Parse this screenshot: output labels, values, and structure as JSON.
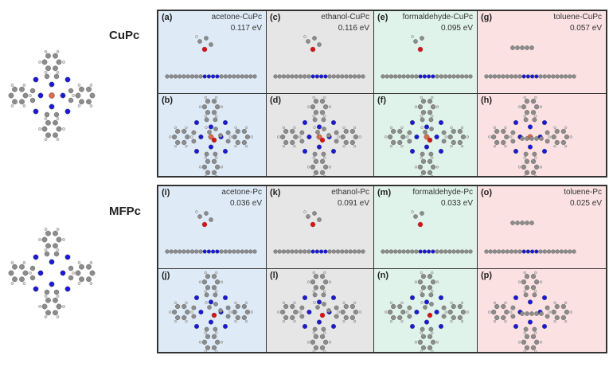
{
  "figure": {
    "molecules": [
      {
        "label": "CuPc",
        "center_atom": "Cu"
      },
      {
        "label": "MFPc",
        "center_atom": "H2"
      }
    ],
    "colors": {
      "acetone_bg": "#deebf7",
      "ethanol_bg": "#e6e6e6",
      "formaldehyde_bg": "#dff3ea",
      "toluene_bg": "#fbe1e1",
      "carbon": "#8c8c8c",
      "nitrogen": "#1a1ad6",
      "oxygen": "#e01010",
      "copper": "#d96a4a",
      "hydrogen": "#e0e0e0"
    },
    "rows": [
      {
        "substrate": "CuPc",
        "panels": [
          {
            "side_tag": "(a)",
            "top_tag": "(b)",
            "name": "acetone-CuPc",
            "energy": "0.117 eV"
          },
          {
            "side_tag": "(c)",
            "top_tag": "(d)",
            "name": "ethanol-CuPc",
            "energy": "0.116 eV"
          },
          {
            "side_tag": "(e)",
            "top_tag": "(f)",
            "name": "formaldehyde-CuPc",
            "energy": "0.095 eV"
          },
          {
            "side_tag": "(g)",
            "top_tag": "(h)",
            "name": "toluene-CuPc",
            "energy": "0.057 eV"
          }
        ]
      },
      {
        "substrate": "MFPc",
        "panels": [
          {
            "side_tag": "(i)",
            "top_tag": "(j)",
            "name": "acetone-Pc",
            "energy": "0.036 eV"
          },
          {
            "side_tag": "(k)",
            "top_tag": "(l)",
            "name": "ethanol-Pc",
            "energy": "0.091 eV"
          },
          {
            "side_tag": "(m)",
            "top_tag": "(n)",
            "name": "formaldehyde-Pc",
            "energy": "0.033 eV"
          },
          {
            "side_tag": "(o)",
            "top_tag": "(p)",
            "name": "toluene-Pc",
            "energy": "0.025 eV"
          }
        ]
      }
    ]
  }
}
